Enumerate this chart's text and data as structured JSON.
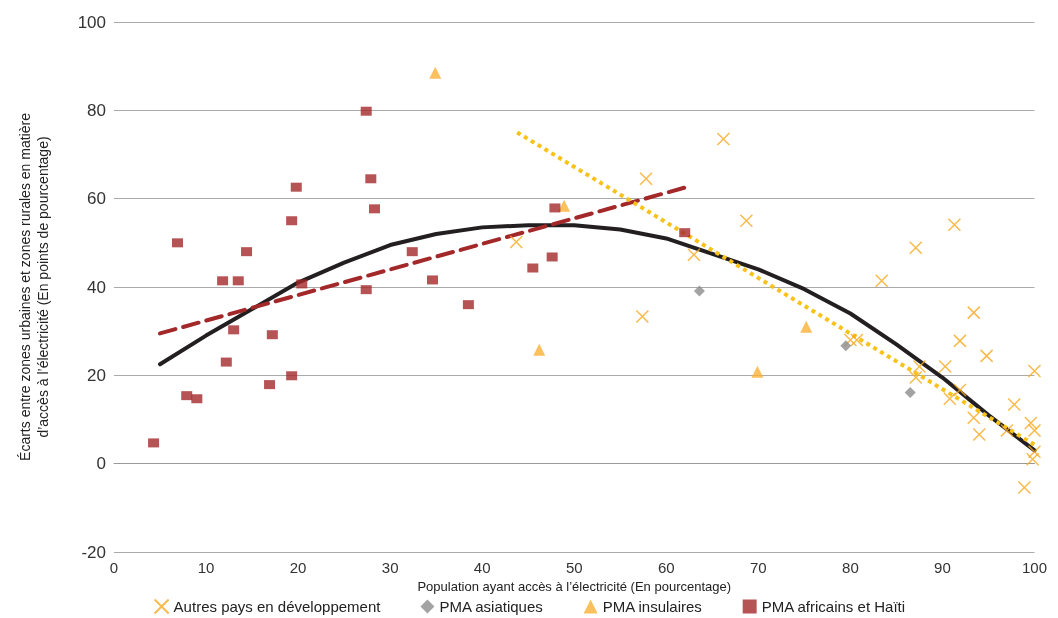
{
  "chart_data": {
    "type": "scatter",
    "xlabel": "Population ayant accès à l’électricité (En pourcentage)",
    "ylabel": "Écarts entre zones urbaines et zones rurales en matière\nd’accès à l’électricité (En points de pourcentage)",
    "xlim": [
      0,
      100
    ],
    "xticks": [
      0,
      10,
      20,
      30,
      40,
      50,
      60,
      70,
      80,
      90,
      100
    ],
    "ylim": [
      -20,
      100
    ],
    "yticks": [
      -20,
      0,
      20,
      40,
      60,
      80,
      100
    ],
    "grid": "y",
    "legend": "bottom",
    "series": [
      {
        "name": "Autres pays en développement",
        "color": "#f7a91f",
        "marker": "cross",
        "x": [
          43.7,
          57.8,
          57.4,
          66.2,
          63,
          68.7,
          83.4,
          87.1,
          91.3,
          80,
          80.7,
          87.5,
          87.1,
          90.3,
          90.8,
          91.9,
          93.4,
          94.8,
          91.9,
          93.4,
          94,
          97.8,
          97,
          99.6,
          100,
          100,
          100,
          99.8,
          98.9
        ],
        "values": [
          50.2,
          64.5,
          33.3,
          73.5,
          47.3,
          55,
          41.4,
          48.9,
          54.1,
          28,
          28,
          22,
          19.5,
          22,
          14.7,
          27.8,
          34.2,
          24.4,
          16.7,
          10.4,
          6.6,
          13.4,
          7.5,
          9.2,
          7.5,
          21,
          2.7,
          1,
          -5.4
        ]
      },
      {
        "name": "PMA asiatiques",
        "color": "#8c8c8c",
        "marker": "diamond",
        "x": [
          63.6,
          79.5,
          86.5
        ],
        "values": [
          39.1,
          26.7,
          16.1
        ]
      },
      {
        "name": "PMA insulaires",
        "color": "#fbb034",
        "marker": "triangle",
        "x": [
          34.9,
          48.9,
          46.2,
          69.9,
          75.2
        ],
        "values": [
          88.5,
          58.4,
          25.8,
          20.8,
          31
        ]
      },
      {
        "name": "PMA africains et Haïti",
        "color": "#a3282a",
        "marker": "square",
        "x": [
          4.3,
          6.9,
          7.9,
          9,
          11.8,
          13.5,
          14.4,
          13,
          12.2,
          17.2,
          16.9,
          19.3,
          19.3,
          19.8,
          20.4,
          27.4,
          27.9,
          28.3,
          27.4,
          32.4,
          34.6,
          38.5,
          47.9,
          47.6,
          45.5,
          62
        ],
        "values": [
          4.7,
          50,
          15.4,
          14.7,
          41.4,
          41.4,
          48,
          30.3,
          23,
          29.2,
          17.9,
          19.9,
          55,
          62.6,
          40.7,
          79.8,
          64.5,
          57.7,
          39.4,
          48,
          41.6,
          36,
          57.9,
          46.8,
          44.3,
          52.3
        ]
      },
      {
        "type": "line",
        "color": "#231f20",
        "marker": "none",
        "line_style": "solid",
        "x": [
          5,
          10,
          15,
          20,
          25,
          30,
          35,
          40,
          45,
          50,
          55,
          60,
          65,
          70,
          75,
          80,
          85,
          90,
          95,
          100
        ],
        "values": [
          22.5,
          29,
          35,
          41,
          45.5,
          49.5,
          52,
          53.5,
          54,
          54,
          53,
          51,
          47.5,
          44,
          39.5,
          34,
          27,
          19.5,
          11,
          3
        ]
      },
      {
        "type": "line",
        "color": "#a3282a",
        "marker": "none",
        "line_style": "dashed",
        "x": [
          5,
          62
        ],
        "values": [
          29.5,
          62.5
        ]
      },
      {
        "type": "line",
        "color": "#f8c21a",
        "marker": "none",
        "line_style": "dotted",
        "x": [
          43.8,
          100
        ],
        "values": [
          75,
          4.3
        ]
      }
    ]
  }
}
